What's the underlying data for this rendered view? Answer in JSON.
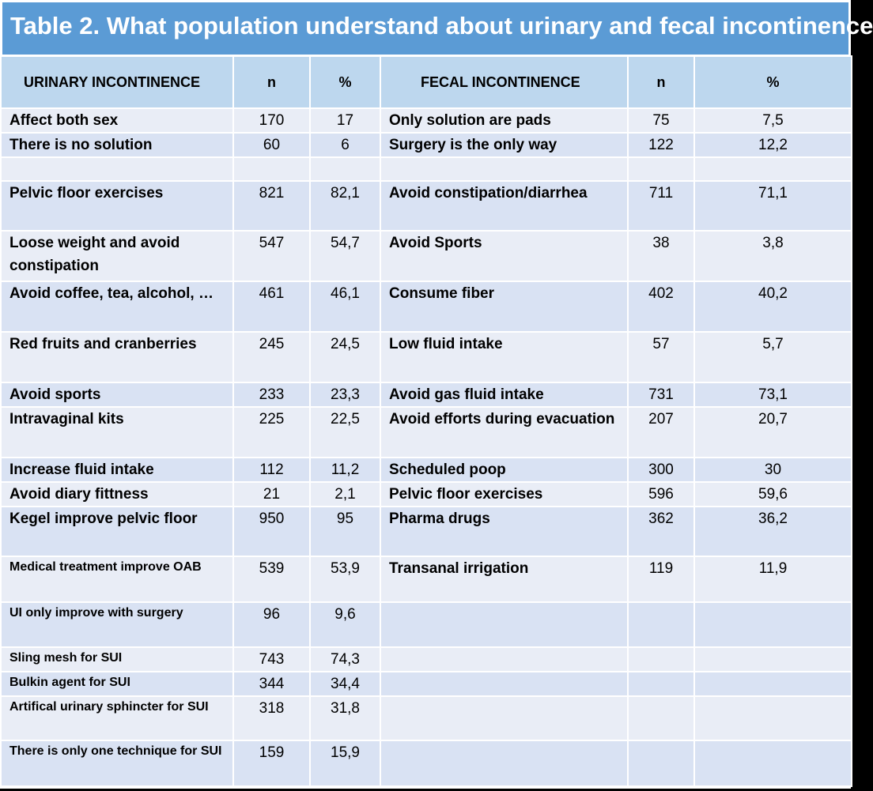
{
  "title": "Table 2. What population understand about urinary and fecal incontinence",
  "headers": {
    "urinary": "URINARY INCONTINENCE",
    "n1": "n",
    "p1": "%",
    "fecal": "FECAL INCONTINENCE",
    "n2": "n",
    "p2": "%"
  },
  "rows": [
    {
      "u": "Affect both sex",
      "un": "170",
      "up": "17",
      "f": "Only solution are pads",
      "fn": "75",
      "fp": "7,5"
    },
    {
      "u": "There is no solution",
      "un": "60",
      "up": "6",
      "f": "Surgery is the only way",
      "fn": "122",
      "fp": "12,2"
    },
    {
      "u": "",
      "un": "",
      "up": "",
      "f": "",
      "fn": "",
      "fp": ""
    },
    {
      "u": "Pelvic floor exercises",
      "un": "821",
      "up": "82,1",
      "f": "Avoid constipation/diarrhea",
      "fn": "711",
      "fp": "71,1"
    },
    {
      "u": "Loose weight and avoid constipation",
      "un": "547",
      "up": "54,7",
      "f": "Avoid Sports",
      "fn": "38",
      "fp": "3,8"
    },
    {
      "u": "Avoid coffee, tea, alcohol, …",
      "un": "461",
      "up": "46,1",
      "f": "Consume fiber",
      "fn": "402",
      "fp": "40,2"
    },
    {
      "u": "Red fruits and cranberries",
      "un": "245",
      "up": "24,5",
      "f": "Low fluid intake",
      "fn": "57",
      "fp": "5,7"
    },
    {
      "u": "Avoid sports",
      "un": "233",
      "up": "23,3",
      "f": "Avoid gas fluid intake",
      "fn": "731",
      "fp": "73,1"
    },
    {
      "u": "Intravaginal kits",
      "un": "225",
      "up": "22,5",
      "f": "Avoid efforts during evacuation",
      "fn": "207",
      "fp": "20,7"
    },
    {
      "u": "Increase fluid intake",
      "un": "112",
      "up": "11,2",
      "f": "Scheduled poop",
      "fn": "300",
      "fp": "30"
    },
    {
      "u": "Avoid diary fittness",
      "un": "21",
      "up": "2,1",
      "f": "Pelvic floor exercises",
      "fn": "596",
      "fp": "59,6"
    },
    {
      "u": "Kegel improve pelvic floor",
      "un": "950",
      "up": "95",
      "f": "Pharma drugs",
      "fn": "362",
      "fp": "36,2"
    },
    {
      "u": "Medical treatment improve OAB",
      "un": "539",
      "up": "53,9",
      "f": "Transanal irrigation",
      "fn": "119",
      "fp": "11,9"
    },
    {
      "u": "UI only improve with surgery",
      "un": "96",
      "up": "9,6",
      "f": "",
      "fn": "",
      "fp": ""
    },
    {
      "u": "Sling mesh for SUI",
      "un": "743",
      "up": "74,3",
      "f": "",
      "fn": "",
      "fp": ""
    },
    {
      "u": "Bulkin agent for SUI",
      "un": "344",
      "up": "34,4",
      "f": "",
      "fn": "",
      "fp": ""
    },
    {
      "u": "Artifical urinary sphincter for SUI",
      "un": "318",
      "up": "31,8",
      "f": "",
      "fn": "",
      "fp": ""
    },
    {
      "u": "There is only one technique for SUI",
      "un": "159",
      "up": "15,9",
      "f": "",
      "fn": "",
      "fp": ""
    }
  ]
}
